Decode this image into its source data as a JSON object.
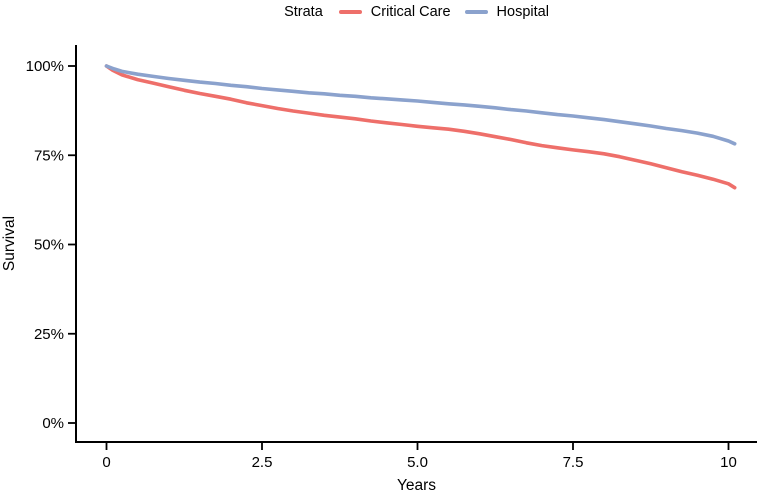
{
  "legend": {
    "title": "Strata",
    "items": [
      {
        "label": "Critical Care",
        "color": "#EE6F6A"
      },
      {
        "label": "Hospital",
        "color": "#8BA2CD"
      }
    ]
  },
  "chart_data": {
    "type": "line",
    "subtype": "kaplan-meier-survival",
    "title": "",
    "xlabel": "Years",
    "ylabel": "Survival",
    "xlim": [
      0,
      10.1
    ],
    "ylim": [
      0,
      100
    ],
    "grid": false,
    "legend_position": "top",
    "x_ticks": {
      "values": [
        0,
        2.5,
        5.0,
        7.5,
        10
      ],
      "labels": [
        "0",
        "2.5",
        "5.0",
        "7.5",
        "10"
      ]
    },
    "y_ticks": {
      "values": [
        0,
        25,
        50,
        75,
        100
      ],
      "labels": [
        "0%",
        "25%",
        "50%",
        "75%",
        "100%"
      ]
    },
    "series": [
      {
        "name": "Critical Care",
        "color": "#EE6F6A",
        "points": [
          [
            0,
            100
          ],
          [
            0.1,
            98.8
          ],
          [
            0.25,
            97.5
          ],
          [
            0.5,
            96.2
          ],
          [
            0.75,
            95.2
          ],
          [
            1,
            94.2
          ],
          [
            1.25,
            93.2
          ],
          [
            1.5,
            92.3
          ],
          [
            1.75,
            91.5
          ],
          [
            2,
            90.7
          ],
          [
            2.25,
            89.7
          ],
          [
            2.5,
            88.9
          ],
          [
            2.75,
            88.1
          ],
          [
            3,
            87.4
          ],
          [
            3.25,
            86.8
          ],
          [
            3.5,
            86.2
          ],
          [
            3.75,
            85.7
          ],
          [
            4,
            85.2
          ],
          [
            4.25,
            84.6
          ],
          [
            4.5,
            84.1
          ],
          [
            4.75,
            83.6
          ],
          [
            5,
            83.1
          ],
          [
            5.25,
            82.7
          ],
          [
            5.5,
            82.3
          ],
          [
            5.75,
            81.7
          ],
          [
            6,
            81.0
          ],
          [
            6.25,
            80.2
          ],
          [
            6.5,
            79.4
          ],
          [
            6.75,
            78.5
          ],
          [
            7,
            77.7
          ],
          [
            7.25,
            77.1
          ],
          [
            7.5,
            76.5
          ],
          [
            7.75,
            76.0
          ],
          [
            8,
            75.4
          ],
          [
            8.25,
            74.6
          ],
          [
            8.5,
            73.6
          ],
          [
            8.75,
            72.6
          ],
          [
            9,
            71.5
          ],
          [
            9.25,
            70.4
          ],
          [
            9.5,
            69.4
          ],
          [
            9.75,
            68.3
          ],
          [
            10,
            67.0
          ],
          [
            10.1,
            65.9
          ]
        ]
      },
      {
        "name": "Hospital",
        "color": "#8BA2CD",
        "points": [
          [
            0,
            100
          ],
          [
            0.12,
            99.2
          ],
          [
            0.25,
            98.5
          ],
          [
            0.5,
            97.7
          ],
          [
            0.75,
            97.1
          ],
          [
            1,
            96.5
          ],
          [
            1.25,
            96.0
          ],
          [
            1.5,
            95.5
          ],
          [
            1.75,
            95.1
          ],
          [
            2,
            94.6
          ],
          [
            2.25,
            94.2
          ],
          [
            2.5,
            93.7
          ],
          [
            2.75,
            93.3
          ],
          [
            3,
            92.9
          ],
          [
            3.25,
            92.5
          ],
          [
            3.5,
            92.2
          ],
          [
            3.75,
            91.8
          ],
          [
            4,
            91.5
          ],
          [
            4.25,
            91.1
          ],
          [
            4.5,
            90.8
          ],
          [
            4.75,
            90.5
          ],
          [
            5,
            90.2
          ],
          [
            5.25,
            89.8
          ],
          [
            5.5,
            89.4
          ],
          [
            5.75,
            89.1
          ],
          [
            6,
            88.7
          ],
          [
            6.25,
            88.3
          ],
          [
            6.5,
            87.8
          ],
          [
            6.75,
            87.4
          ],
          [
            7,
            86.9
          ],
          [
            7.25,
            86.4
          ],
          [
            7.5,
            86.0
          ],
          [
            7.75,
            85.5
          ],
          [
            8,
            85.0
          ],
          [
            8.25,
            84.4
          ],
          [
            8.5,
            83.8
          ],
          [
            8.75,
            83.2
          ],
          [
            9,
            82.5
          ],
          [
            9.25,
            81.9
          ],
          [
            9.5,
            81.2
          ],
          [
            9.75,
            80.3
          ],
          [
            10,
            79.0
          ],
          [
            10.1,
            78.2
          ]
        ]
      }
    ]
  }
}
